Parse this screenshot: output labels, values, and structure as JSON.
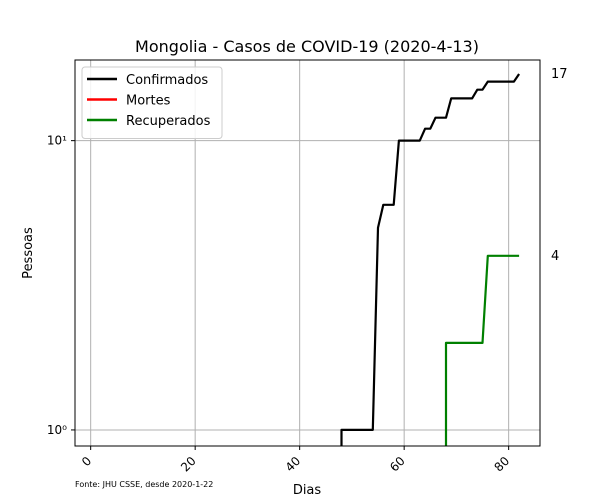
{
  "chart_data": {
    "type": "line",
    "title": "Mongolia - Casos de COVID-19 (2020-4-13)",
    "xlabel": "Dias",
    "ylabel": "Pessoas",
    "source_note": "Fonte: JHU CSSE, desde 2020-1-22",
    "y_scale": "log",
    "xlim": [
      -3,
      86
    ],
    "ylim": [
      0.88,
      19
    ],
    "x_ticks": [
      0,
      20,
      40,
      60,
      80
    ],
    "x_tick_labels": [
      "0",
      "20",
      "40",
      "60",
      "80"
    ],
    "y_ticks": [
      1,
      10
    ],
    "y_tick_labels": [
      "10⁰",
      "10¹"
    ],
    "grid": true,
    "legend_position": "top-left",
    "series": [
      {
        "name": "Confirmados",
        "color": "#000000",
        "points": [
          [
            48,
            0.5
          ],
          [
            48,
            1
          ],
          [
            54,
            1
          ],
          [
            55,
            5
          ],
          [
            56,
            6
          ],
          [
            58,
            6
          ],
          [
            59,
            10
          ],
          [
            63,
            10
          ],
          [
            64,
            11
          ],
          [
            65,
            11
          ],
          [
            66,
            12
          ],
          [
            68,
            12
          ],
          [
            69,
            14
          ],
          [
            73,
            14
          ],
          [
            74,
            15
          ],
          [
            75,
            15
          ],
          [
            76,
            16
          ],
          [
            80,
            16
          ],
          [
            81,
            16
          ],
          [
            82,
            17
          ]
        ],
        "end_label": "17"
      },
      {
        "name": "Mortes",
        "color": "#ff0000",
        "points": [],
        "end_label": ""
      },
      {
        "name": "Recuperados",
        "color": "#008000",
        "points": [
          [
            68,
            0.5
          ],
          [
            68,
            2
          ],
          [
            75,
            2
          ],
          [
            76,
            4
          ],
          [
            82,
            4
          ]
        ],
        "end_label": "4"
      }
    ]
  }
}
